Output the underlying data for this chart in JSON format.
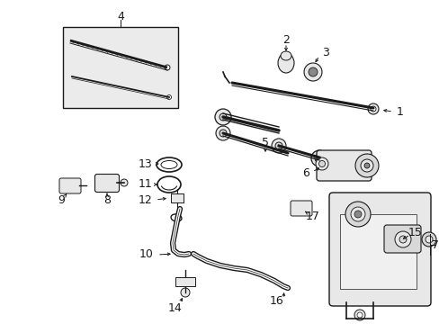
{
  "bg_color": "#ffffff",
  "fig_width": 4.89,
  "fig_height": 3.6,
  "dpi": 100,
  "line_color": "#1a1a1a",
  "gray_fill": "#d8d8d8",
  "light_gray": "#e8e8e8",
  "dark_gray": "#888888"
}
